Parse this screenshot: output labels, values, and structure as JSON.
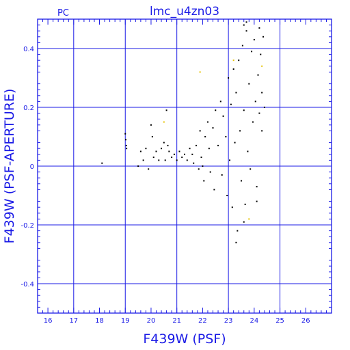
{
  "chart_data": {
    "type": "scatter",
    "title": "lmc_u4zn03",
    "corner_label": "PC",
    "xlabel": "F439W (PSF)",
    "ylabel": "F439W (PSF-APERTURE)",
    "xlim": [
      15.6,
      27.0
    ],
    "ylim": [
      -0.5,
      0.5
    ],
    "x_ticks": [
      "16",
      "17",
      "18",
      "19",
      "20",
      "21",
      "22",
      "23",
      "24",
      "25",
      "26"
    ],
    "y_ticks": [
      "0.4",
      "0.2",
      "0",
      "-0.2",
      "-0.4"
    ],
    "grid": true,
    "colors": {
      "axis": "#1a1ae6",
      "points": "#000000",
      "highlight": "#e6c200",
      "background": "#ffffff"
    },
    "series": [
      {
        "points": [
          [
            18.1,
            0.01
          ],
          [
            19.0,
            0.11
          ],
          [
            19.02,
            0.09
          ],
          [
            19.04,
            0.07
          ],
          [
            19.05,
            0.06
          ],
          [
            19.5,
            0.0
          ],
          [
            19.6,
            0.05
          ],
          [
            19.7,
            0.02
          ],
          [
            19.8,
            0.06
          ],
          [
            19.9,
            -0.01
          ],
          [
            20.0,
            0.14
          ],
          [
            20.05,
            0.1
          ],
          [
            20.1,
            0.03
          ],
          [
            20.2,
            0.05
          ],
          [
            20.3,
            0.02
          ],
          [
            20.4,
            0.06
          ],
          [
            20.5,
            0.08
          ],
          [
            20.55,
            0.02
          ],
          [
            20.6,
            0.19
          ],
          [
            20.65,
            0.07
          ],
          [
            20.7,
            0.05
          ],
          [
            20.8,
            0.03
          ],
          [
            20.9,
            0.04
          ],
          [
            21.0,
            0.02
          ],
          [
            21.1,
            0.05
          ],
          [
            21.2,
            0.03
          ],
          [
            21.3,
            0.04
          ],
          [
            21.4,
            0.02
          ],
          [
            21.5,
            0.06
          ],
          [
            21.6,
            0.04
          ],
          [
            21.65,
            0.01
          ],
          [
            21.75,
            0.07
          ],
          [
            21.85,
            -0.01
          ],
          [
            21.9,
            0.12
          ],
          [
            21.95,
            0.03
          ],
          [
            22.0,
            0.0
          ],
          [
            22.05,
            -0.05
          ],
          [
            22.1,
            0.1
          ],
          [
            22.2,
            0.15
          ],
          [
            22.25,
            0.06
          ],
          [
            22.3,
            -0.02
          ],
          [
            22.4,
            0.13
          ],
          [
            22.45,
            -0.08
          ],
          [
            22.5,
            0.19
          ],
          [
            22.6,
            0.07
          ],
          [
            22.7,
            0.22
          ],
          [
            22.75,
            -0.03
          ],
          [
            22.8,
            0.17
          ],
          [
            22.9,
            0.1
          ],
          [
            22.95,
            -0.1
          ],
          [
            23.0,
            0.3
          ],
          [
            23.05,
            0.02
          ],
          [
            23.1,
            0.21
          ],
          [
            23.15,
            -0.14
          ],
          [
            23.2,
            0.33
          ],
          [
            23.25,
            0.08
          ],
          [
            23.3,
            0.25
          ],
          [
            23.35,
            -0.22
          ],
          [
            23.4,
            0.36
          ],
          [
            23.45,
            0.12
          ],
          [
            23.5,
            -0.05
          ],
          [
            23.55,
            0.41
          ],
          [
            23.6,
            0.19
          ],
          [
            23.65,
            -0.13
          ],
          [
            23.7,
            0.46
          ],
          [
            23.75,
            0.05
          ],
          [
            23.8,
            0.28
          ],
          [
            23.85,
            -0.01
          ],
          [
            23.9,
            0.39
          ],
          [
            23.95,
            0.15
          ],
          [
            24.0,
            0.43
          ],
          [
            24.05,
            0.22
          ],
          [
            24.1,
            -0.12
          ],
          [
            24.15,
            0.31
          ],
          [
            24.2,
            0.18
          ],
          [
            24.25,
            0.38
          ],
          [
            24.3,
            0.25
          ],
          [
            24.35,
            0.44
          ],
          [
            24.4,
            0.2
          ],
          [
            23.6,
            0.48
          ],
          [
            23.7,
            0.49
          ],
          [
            24.2,
            0.47
          ],
          [
            23.3,
            -0.26
          ],
          [
            23.6,
            -0.19
          ],
          [
            24.1,
            -0.07
          ],
          [
            24.3,
            0.12
          ]
        ]
      },
      {
        "points": [
          [
            20.5,
            0.15
          ],
          [
            21.9,
            0.32
          ],
          [
            23.2,
            0.36
          ],
          [
            23.8,
            -0.18
          ],
          [
            24.3,
            0.34
          ]
        ]
      }
    ]
  }
}
